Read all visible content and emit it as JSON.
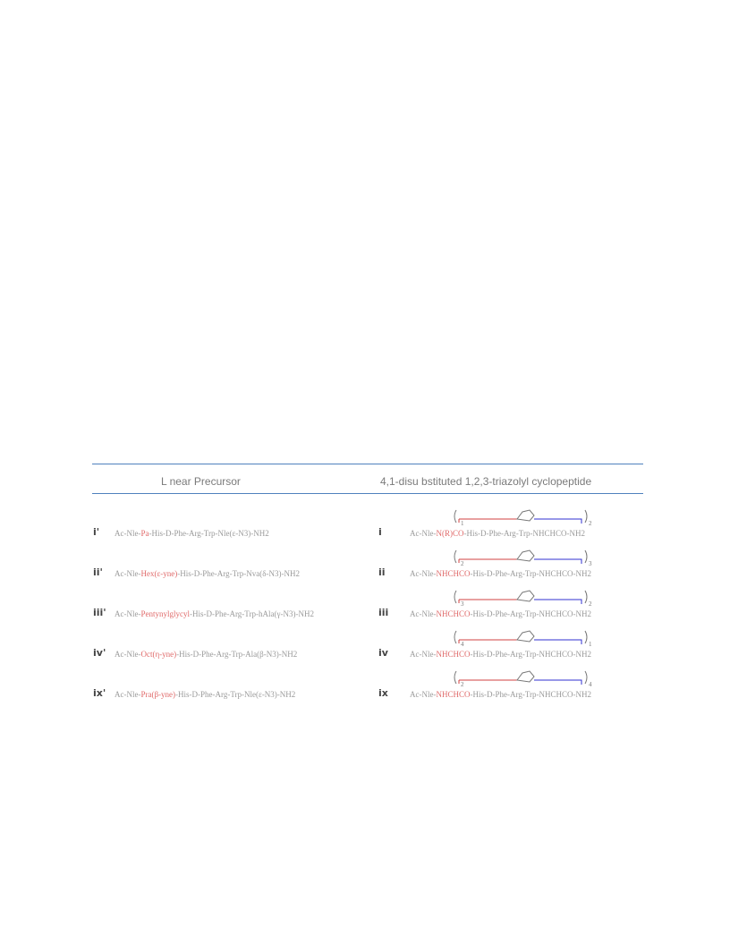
{
  "table": {
    "headers": {
      "left": "L near Precursor",
      "right": "4,1-disu bstituted 1,2,3-triazolyl cyclopeptide"
    },
    "rows": [
      {
        "precursor_label": "i'",
        "precursor_seq": {
          "pre": "Ac-Nle-",
          "red": "Pa",
          "post": "-His-D-Phe-Arg-Trp-Nle(ε-N3)-NH2"
        },
        "product_label": "i",
        "product_seq": {
          "pre": "Ac-Nle-",
          "red": "N(R)CO",
          "post": "-His-D-Phe-Arg-Trp-NHCHCO-NH2"
        },
        "struct_sub": "1",
        "struct_right_sub": "2"
      },
      {
        "precursor_label": "ii'",
        "precursor_seq": {
          "pre": "Ac-Nle-",
          "red": "Hex(ε-yne)",
          "post": "-His-D-Phe-Arg-Trp-Nva(δ-N3)-NH2"
        },
        "product_label": "ii",
        "product_seq": {
          "pre": "Ac-Nle-",
          "red": "NHCHCO",
          "post": "-His-D-Phe-Arg-Trp-NHCHCO-NH2"
        },
        "struct_sub": "2",
        "struct_right_sub": "3"
      },
      {
        "precursor_label": "iii'",
        "precursor_seq": {
          "pre": "Ac-Nle-",
          "red": "Pentynylglycyl",
          "post": "-His-D-Phe-Arg-Trp-hAla(γ-N3)-NH2"
        },
        "product_label": "iii",
        "product_seq": {
          "pre": "Ac-Nle-",
          "red": "NHCHCO",
          "post": "-His-D-Phe-Arg-Trp-NHCHCO-NH2"
        },
        "struct_sub": "3",
        "struct_right_sub": "2"
      },
      {
        "precursor_label": "iv'",
        "precursor_seq": {
          "pre": "Ac-Nle-",
          "red": "Oct(η-yne)",
          "post": "-His-D-Phe-Arg-Trp-Ala(β-N3)-NH2"
        },
        "product_label": "iv",
        "product_seq": {
          "pre": "Ac-Nle-",
          "red": "NHCHCO",
          "post": "-His-D-Phe-Arg-Trp-NHCHCO-NH2"
        },
        "struct_sub": "4",
        "struct_right_sub": "1"
      },
      {
        "precursor_label": "ix'",
        "precursor_seq": {
          "pre": "Ac-Nle-",
          "red": "Pra(β-yne)",
          "post": "-His-D-Phe-Arg-Trp-Nle(ε-N3)-NH2"
        },
        "product_label": "ix",
        "product_seq": {
          "pre": "Ac-Nle-",
          "red": "NHCHCO",
          "post": "-His-D-Phe-Arg-Trp-NHCHCO-NH2"
        },
        "struct_sub": "2",
        "struct_right_sub": "4"
      }
    ]
  },
  "colors": {
    "rule": "#4f81bd",
    "red_fragment": "#e06a6a",
    "blue_fragment": "#6a6ae0"
  }
}
